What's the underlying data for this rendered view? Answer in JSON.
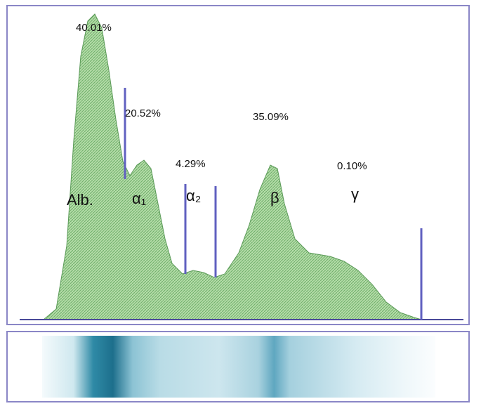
{
  "fractions": [
    {
      "label": "Alb.",
      "percent": "40.01%"
    },
    {
      "label": "α₁",
      "percent": "20.52%"
    },
    {
      "label": "α₂",
      "percent": "4.29%"
    },
    {
      "label": "β",
      "percent": "35.09%"
    },
    {
      "label": "γ",
      "percent": "0.10%"
    }
  ]
}
